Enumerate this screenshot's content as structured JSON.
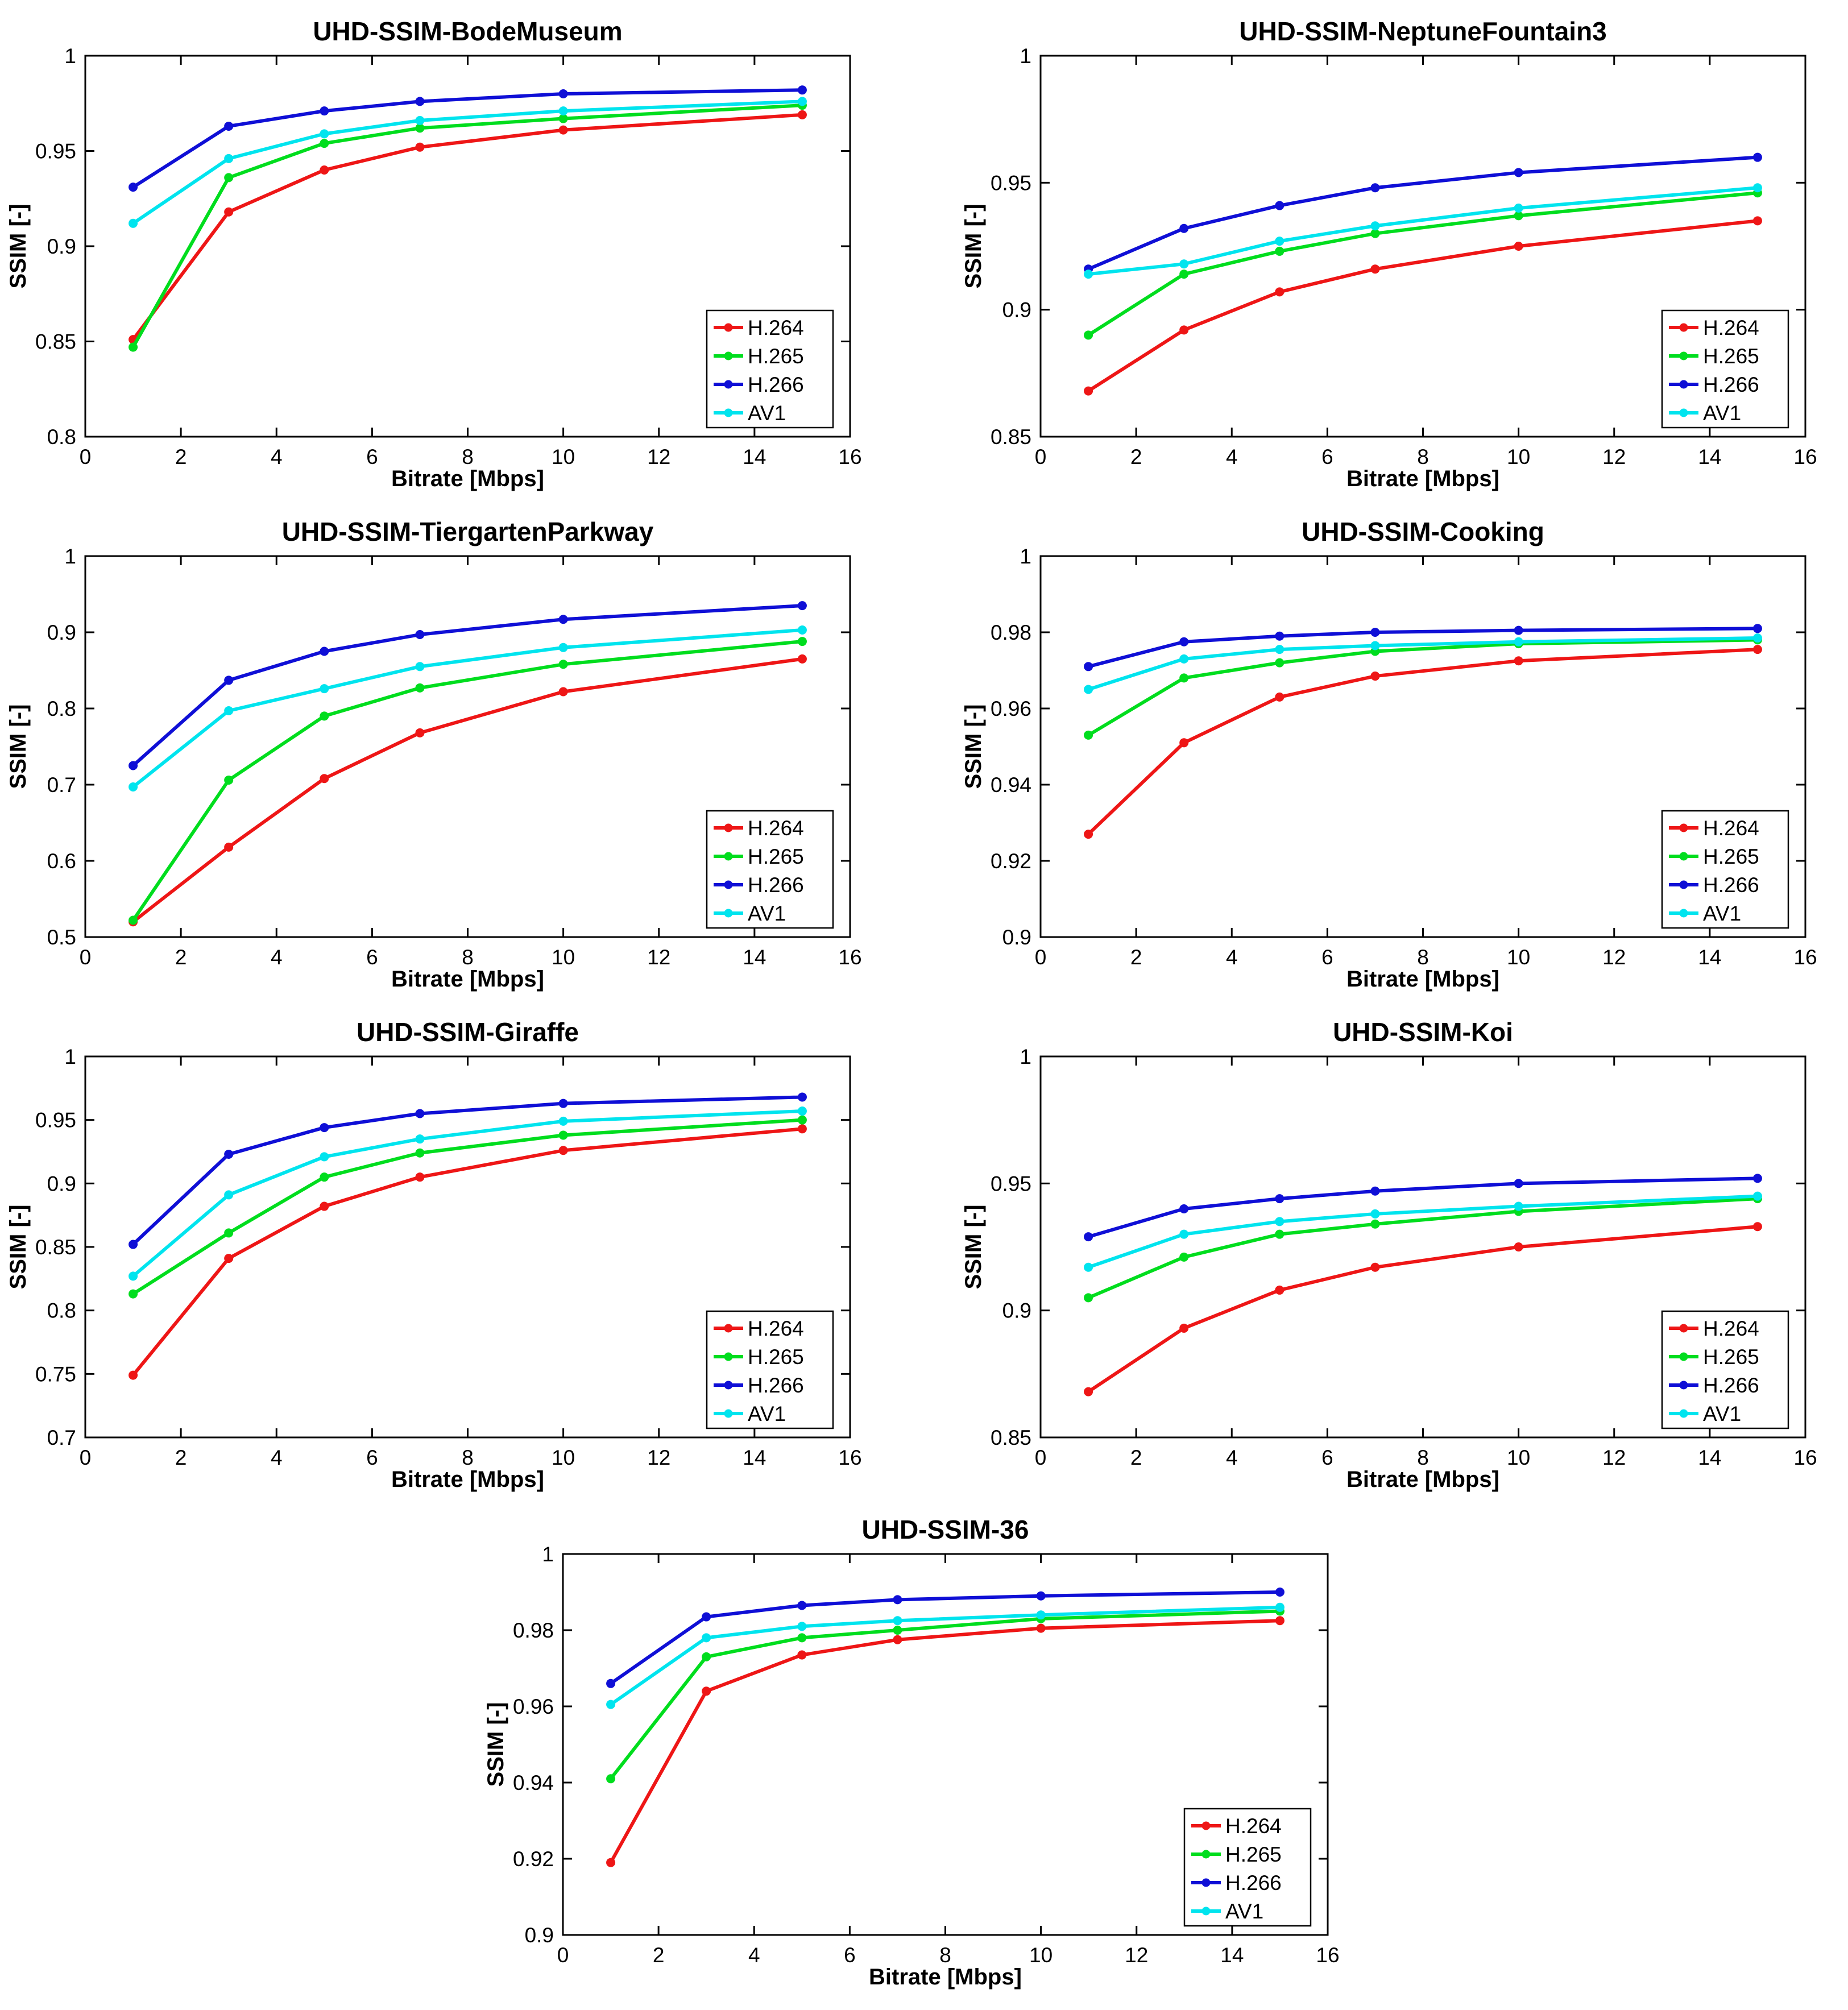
{
  "page": {
    "background": "#ffffff"
  },
  "codec_colors": {
    "H.264": "#ee1616",
    "H.265": "#00dd1e",
    "H.266": "#0f0fd6",
    "AV1": "#00e4ee"
  },
  "chart_data": [
    {
      "type": "line",
      "title": "UHD-SSIM-BodeMuseum",
      "xlabel": "Bitrate [Mbps]",
      "ylabel": "SSIM [-]",
      "xlim": [
        0,
        16
      ],
      "ylim": [
        0.8,
        1
      ],
      "xticks": [
        0,
        2,
        4,
        6,
        8,
        10,
        12,
        14,
        16
      ],
      "yticks": [
        0.8,
        0.85,
        0.9,
        0.95,
        1
      ],
      "grid": false,
      "legend_position": "bottom-right",
      "x": [
        1,
        3,
        5,
        7,
        10,
        15
      ],
      "series": [
        {
          "name": "H.264",
          "color": "#ee1616",
          "values": [
            0.851,
            0.918,
            0.94,
            0.952,
            0.961,
            0.969
          ]
        },
        {
          "name": "H.265",
          "color": "#00dd1e",
          "values": [
            0.847,
            0.936,
            0.954,
            0.962,
            0.967,
            0.974
          ]
        },
        {
          "name": "H.266",
          "color": "#0f0fd6",
          "values": [
            0.931,
            0.963,
            0.971,
            0.976,
            0.98,
            0.982
          ]
        },
        {
          "name": "AV1",
          "color": "#00e4ee",
          "values": [
            0.912,
            0.946,
            0.959,
            0.966,
            0.971,
            0.976
          ]
        }
      ]
    },
    {
      "type": "line",
      "title": "UHD-SSIM-NeptuneFountain3",
      "xlabel": "Bitrate [Mbps]",
      "ylabel": "SSIM [-]",
      "xlim": [
        0,
        16
      ],
      "ylim": [
        0.85,
        1
      ],
      "xticks": [
        0,
        2,
        4,
        6,
        8,
        10,
        12,
        14,
        16
      ],
      "yticks": [
        0.85,
        0.9,
        0.95,
        1
      ],
      "grid": false,
      "legend_position": "bottom-right",
      "x": [
        1,
        3,
        5,
        7,
        10,
        15
      ],
      "series": [
        {
          "name": "H.264",
          "color": "#ee1616",
          "values": [
            0.868,
            0.892,
            0.907,
            0.916,
            0.925,
            0.935
          ]
        },
        {
          "name": "H.265",
          "color": "#00dd1e",
          "values": [
            0.89,
            0.914,
            0.923,
            0.93,
            0.937,
            0.946
          ]
        },
        {
          "name": "H.266",
          "color": "#0f0fd6",
          "values": [
            0.916,
            0.932,
            0.941,
            0.948,
            0.954,
            0.96
          ]
        },
        {
          "name": "AV1",
          "color": "#00e4ee",
          "values": [
            0.914,
            0.918,
            0.927,
            0.933,
            0.94,
            0.948
          ]
        }
      ]
    },
    {
      "type": "line",
      "title": "UHD-SSIM-TiergartenParkway",
      "xlabel": "Bitrate [Mbps]",
      "ylabel": "SSIM [-]",
      "xlim": [
        0,
        16
      ],
      "ylim": [
        0.5,
        1
      ],
      "xticks": [
        0,
        2,
        4,
        6,
        8,
        10,
        12,
        14,
        16
      ],
      "yticks": [
        0.5,
        0.6,
        0.7,
        0.8,
        0.9,
        1
      ],
      "grid": false,
      "legend_position": "bottom-right",
      "x": [
        1,
        3,
        5,
        7,
        10,
        15
      ],
      "series": [
        {
          "name": "H.264",
          "color": "#ee1616",
          "values": [
            0.52,
            0.618,
            0.708,
            0.768,
            0.822,
            0.865
          ]
        },
        {
          "name": "H.265",
          "color": "#00dd1e",
          "values": [
            0.522,
            0.706,
            0.79,
            0.827,
            0.858,
            0.888
          ]
        },
        {
          "name": "H.266",
          "color": "#0f0fd6",
          "values": [
            0.725,
            0.837,
            0.875,
            0.897,
            0.917,
            0.935
          ]
        },
        {
          "name": "AV1",
          "color": "#00e4ee",
          "values": [
            0.697,
            0.797,
            0.826,
            0.855,
            0.88,
            0.903
          ]
        }
      ]
    },
    {
      "type": "line",
      "title": "UHD-SSIM-Cooking",
      "xlabel": "Bitrate [Mbps]",
      "ylabel": "SSIM [-]",
      "xlim": [
        0,
        16
      ],
      "ylim": [
        0.9,
        1
      ],
      "xticks": [
        0,
        2,
        4,
        6,
        8,
        10,
        12,
        14,
        16
      ],
      "yticks": [
        0.9,
        0.92,
        0.94,
        0.96,
        0.98,
        1
      ],
      "grid": false,
      "legend_position": "bottom-right",
      "x": [
        1,
        3,
        5,
        7,
        10,
        15
      ],
      "series": [
        {
          "name": "H.264",
          "color": "#ee1616",
          "values": [
            0.927,
            0.951,
            0.963,
            0.9685,
            0.9725,
            0.9755
          ]
        },
        {
          "name": "H.265",
          "color": "#00dd1e",
          "values": [
            0.953,
            0.968,
            0.972,
            0.975,
            0.977,
            0.978
          ]
        },
        {
          "name": "H.266",
          "color": "#0f0fd6",
          "values": [
            0.971,
            0.9775,
            0.979,
            0.98,
            0.9805,
            0.981
          ]
        },
        {
          "name": "AV1",
          "color": "#00e4ee",
          "values": [
            0.965,
            0.973,
            0.9755,
            0.9765,
            0.9775,
            0.9785
          ]
        }
      ]
    },
    {
      "type": "line",
      "title": "UHD-SSIM-Giraffe",
      "xlabel": "Bitrate [Mbps]",
      "ylabel": "SSIM [-]",
      "xlim": [
        0,
        16
      ],
      "ylim": [
        0.7,
        1
      ],
      "xticks": [
        0,
        2,
        4,
        6,
        8,
        10,
        12,
        14,
        16
      ],
      "yticks": [
        0.7,
        0.75,
        0.8,
        0.85,
        0.9,
        0.95,
        1
      ],
      "grid": false,
      "legend_position": "bottom-right",
      "x": [
        1,
        3,
        5,
        7,
        10,
        15
      ],
      "series": [
        {
          "name": "H.264",
          "color": "#ee1616",
          "values": [
            0.749,
            0.841,
            0.882,
            0.905,
            0.926,
            0.943
          ]
        },
        {
          "name": "H.265",
          "color": "#00dd1e",
          "values": [
            0.813,
            0.861,
            0.905,
            0.924,
            0.938,
            0.95
          ]
        },
        {
          "name": "H.266",
          "color": "#0f0fd6",
          "values": [
            0.852,
            0.923,
            0.944,
            0.955,
            0.963,
            0.968
          ]
        },
        {
          "name": "AV1",
          "color": "#00e4ee",
          "values": [
            0.827,
            0.891,
            0.921,
            0.935,
            0.949,
            0.957
          ]
        }
      ]
    },
    {
      "type": "line",
      "title": "UHD-SSIM-Koi",
      "xlabel": "Bitrate [Mbps]",
      "ylabel": "SSIM [-]",
      "xlim": [
        0,
        16
      ],
      "ylim": [
        0.85,
        1
      ],
      "xticks": [
        0,
        2,
        4,
        6,
        8,
        10,
        12,
        14,
        16
      ],
      "yticks": [
        0.85,
        0.9,
        0.95,
        1
      ],
      "grid": false,
      "legend_position": "bottom-right",
      "x": [
        1,
        3,
        5,
        7,
        10,
        15
      ],
      "series": [
        {
          "name": "H.264",
          "color": "#ee1616",
          "values": [
            0.868,
            0.893,
            0.908,
            0.917,
            0.925,
            0.933
          ]
        },
        {
          "name": "H.265",
          "color": "#00dd1e",
          "values": [
            0.905,
            0.921,
            0.93,
            0.934,
            0.939,
            0.944
          ]
        },
        {
          "name": "H.266",
          "color": "#0f0fd6",
          "values": [
            0.929,
            0.94,
            0.944,
            0.947,
            0.95,
            0.952
          ]
        },
        {
          "name": "AV1",
          "color": "#00e4ee",
          "values": [
            0.917,
            0.93,
            0.935,
            0.938,
            0.941,
            0.945
          ]
        }
      ]
    },
    {
      "type": "line",
      "title": "UHD-SSIM-36",
      "xlabel": "Bitrate [Mbps]",
      "ylabel": "SSIM [-]",
      "xlim": [
        0,
        16
      ],
      "ylim": [
        0.9,
        1
      ],
      "xticks": [
        0,
        2,
        4,
        6,
        8,
        10,
        12,
        14,
        16
      ],
      "yticks": [
        0.9,
        0.92,
        0.94,
        0.96,
        0.98,
        1
      ],
      "grid": false,
      "legend_position": "bottom-right",
      "x": [
        1,
        3,
        5,
        7,
        10,
        15
      ],
      "series": [
        {
          "name": "H.264",
          "color": "#ee1616",
          "values": [
            0.919,
            0.964,
            0.9735,
            0.9775,
            0.9805,
            0.9825
          ]
        },
        {
          "name": "H.265",
          "color": "#00dd1e",
          "values": [
            0.941,
            0.973,
            0.978,
            0.98,
            0.983,
            0.985
          ]
        },
        {
          "name": "H.266",
          "color": "#0f0fd6",
          "values": [
            0.966,
            0.9835,
            0.9865,
            0.988,
            0.989,
            0.99
          ]
        },
        {
          "name": "AV1",
          "color": "#00e4ee",
          "values": [
            0.9605,
            0.978,
            0.981,
            0.9825,
            0.984,
            0.986
          ]
        }
      ]
    }
  ]
}
